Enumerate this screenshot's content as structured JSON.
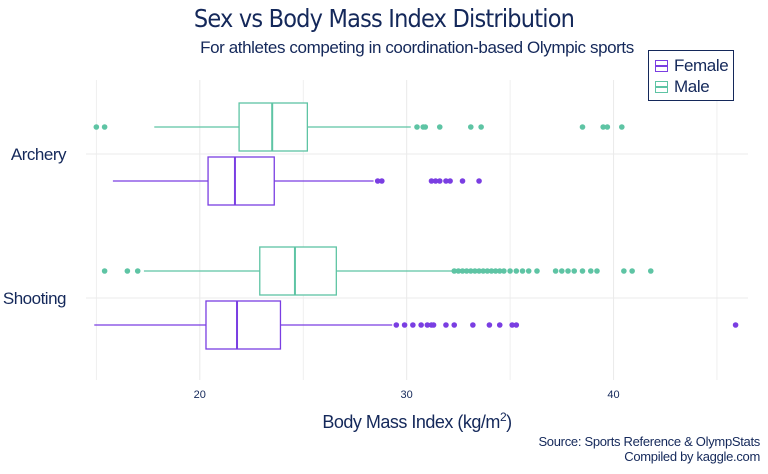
{
  "chart_data": {
    "type": "boxplot",
    "orientation": "horizontal",
    "title": "Sex vs Body Mass Index Distribution",
    "subtitle": "For athletes competing in coordination-based Olympic sports",
    "xlabel_text": "Body Mass Index (kg/m",
    "xlabel_sup": "2",
    "xlabel_close": ")",
    "xlim": [
      14.5,
      46.5
    ],
    "xticks": [
      20,
      30,
      40
    ],
    "grid": true,
    "legend_placement": "top-right",
    "caption": [
      "Source: Sports Reference & OlympStats",
      "Compiled by kaggle.com"
    ],
    "colors": {
      "Female": "#7a3ee2",
      "Male": "#5ec4a4"
    },
    "categories": [
      "Archery",
      "Shooting"
    ],
    "series": [
      {
        "name": "Female"
      },
      {
        "name": "Male"
      }
    ],
    "boxes": [
      {
        "category": "Archery",
        "sex": "Male",
        "whisker_low": 17.8,
        "q1": 21.9,
        "median": 23.5,
        "q3": 25.2,
        "whisker_high": 30.2,
        "outliers": [
          15.0,
          15.4,
          30.5,
          30.8,
          30.9,
          31.6,
          33.1,
          33.6,
          38.5,
          39.5,
          39.7,
          40.4
        ]
      },
      {
        "category": "Archery",
        "sex": "Female",
        "whisker_low": 15.8,
        "q1": 20.4,
        "median": 21.7,
        "q3": 23.6,
        "whisker_high": 28.4,
        "outliers": [
          28.6,
          28.8,
          31.2,
          31.4,
          31.6,
          31.9,
          32.1,
          32.7,
          33.5
        ]
      },
      {
        "category": "Shooting",
        "sex": "Male",
        "whisker_low": 17.3,
        "q1": 22.9,
        "median": 24.6,
        "q3": 26.6,
        "whisker_high": 32.2,
        "outliers": [
          15.4,
          16.5,
          17.0,
          32.3,
          32.5,
          32.7,
          32.9,
          33.1,
          33.3,
          33.5,
          33.7,
          33.9,
          34.1,
          34.3,
          34.5,
          34.7,
          35.0,
          35.3,
          35.6,
          35.9,
          36.3,
          37.2,
          37.5,
          37.8,
          38.1,
          38.5,
          38.9,
          39.2,
          40.5,
          40.9,
          41.8
        ]
      },
      {
        "category": "Shooting",
        "sex": "Female",
        "whisker_low": 14.9,
        "q1": 20.3,
        "median": 21.8,
        "q3": 23.9,
        "whisker_high": 29.3,
        "outliers": [
          29.5,
          29.9,
          30.3,
          30.7,
          31.0,
          31.2,
          31.3,
          31.9,
          32.3,
          33.2,
          34.0,
          34.5,
          35.1,
          35.3,
          45.9
        ]
      }
    ]
  }
}
